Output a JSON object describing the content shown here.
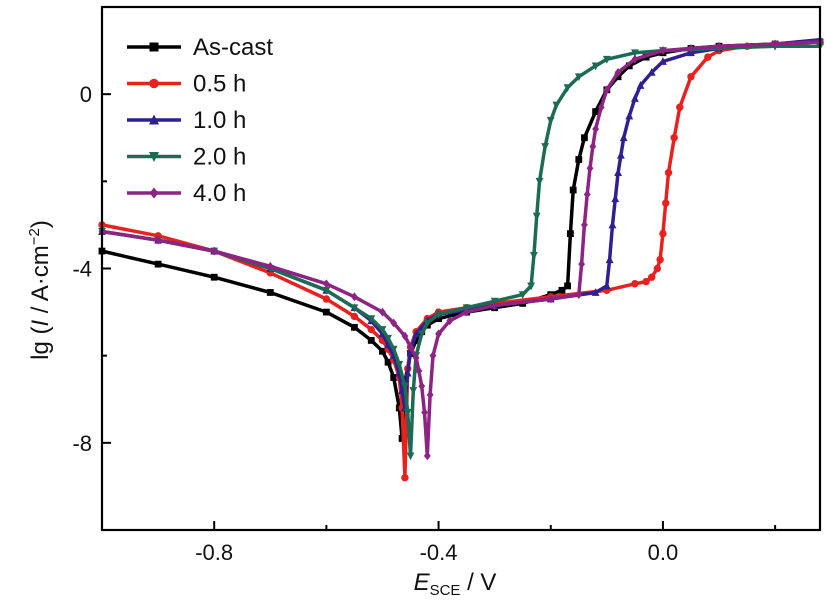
{
  "chart_data": {
    "type": "line",
    "xlabel": {
      "main": "E",
      "sub": "SCE",
      "unit": " / V"
    },
    "ylabel": {
      "prefix": "lg (",
      "italic": "I",
      "mid": " / A·cm",
      "sup": "−2",
      "suffix": ")"
    },
    "xlim": [
      -1.0,
      0.28
    ],
    "ylim": [
      -10.0,
      2.0
    ],
    "x_ticks": [
      -0.8,
      -0.4,
      0.0
    ],
    "x_tick_labels": [
      "-0.8",
      "-0.4",
      "0.0"
    ],
    "y_ticks": [
      0,
      -4,
      -8
    ],
    "y_tick_labels": [
      "0",
      "-4",
      "-8"
    ],
    "grid": false,
    "legend_position": "top-left",
    "series": [
      {
        "name": "As-cast",
        "color": "#000000",
        "marker": "square",
        "x": [
          -1.0,
          -0.9,
          -0.8,
          -0.7,
          -0.6,
          -0.55,
          -0.52,
          -0.5,
          -0.49,
          -0.48,
          -0.47,
          -0.465,
          -0.46,
          -0.45,
          -0.44,
          -0.43,
          -0.42,
          -0.4,
          -0.35,
          -0.3,
          -0.25,
          -0.2,
          -0.18,
          -0.17,
          -0.165,
          -0.16,
          -0.15,
          -0.14,
          -0.12,
          -0.1,
          -0.08,
          -0.06,
          -0.03,
          0.0,
          0.05,
          0.1,
          0.2,
          0.28
        ],
        "y": [
          -3.6,
          -3.9,
          -4.2,
          -4.55,
          -5.0,
          -5.35,
          -5.65,
          -5.9,
          -6.15,
          -6.5,
          -7.2,
          -7.9,
          -6.6,
          -5.95,
          -5.65,
          -5.45,
          -5.3,
          -5.15,
          -5.0,
          -4.9,
          -4.8,
          -4.6,
          -4.5,
          -4.4,
          -3.2,
          -2.2,
          -1.5,
          -1.0,
          -0.4,
          0.1,
          0.4,
          0.65,
          0.85,
          0.95,
          1.05,
          1.1,
          1.15,
          1.2
        ]
      },
      {
        "name": "0.5 h",
        "color": "#e8211f",
        "marker": "circle",
        "x": [
          -1.0,
          -0.9,
          -0.8,
          -0.7,
          -0.6,
          -0.55,
          -0.52,
          -0.5,
          -0.49,
          -0.48,
          -0.47,
          -0.465,
          -0.46,
          -0.455,
          -0.45,
          -0.44,
          -0.42,
          -0.4,
          -0.35,
          -0.3,
          -0.2,
          -0.1,
          -0.05,
          -0.03,
          -0.02,
          -0.01,
          -0.005,
          0.0,
          0.005,
          0.01,
          0.02,
          0.03,
          0.05,
          0.08,
          0.1,
          0.15,
          0.2,
          0.28
        ],
        "y": [
          -3.0,
          -3.25,
          -3.6,
          -4.1,
          -4.7,
          -5.1,
          -5.4,
          -5.65,
          -5.85,
          -6.1,
          -6.5,
          -7.2,
          -8.8,
          -6.3,
          -5.8,
          -5.45,
          -5.15,
          -5.0,
          -4.9,
          -4.8,
          -4.65,
          -4.5,
          -4.35,
          -4.3,
          -4.2,
          -4.0,
          -3.8,
          -3.2,
          -2.5,
          -1.8,
          -1.0,
          -0.3,
          0.4,
          0.85,
          1.0,
          1.1,
          1.15,
          1.2
        ]
      },
      {
        "name": "1.0 h",
        "color": "#2e2092",
        "marker": "triangle-up",
        "x": [
          -1.0,
          -0.9,
          -0.8,
          -0.7,
          -0.6,
          -0.55,
          -0.52,
          -0.5,
          -0.49,
          -0.48,
          -0.47,
          -0.465,
          -0.46,
          -0.455,
          -0.45,
          -0.44,
          -0.42,
          -0.4,
          -0.35,
          -0.3,
          -0.2,
          -0.12,
          -0.1,
          -0.095,
          -0.09,
          -0.085,
          -0.08,
          -0.075,
          -0.07,
          -0.06,
          -0.05,
          -0.04,
          -0.02,
          0.0,
          0.05,
          0.1,
          0.2,
          0.28
        ],
        "y": [
          -3.15,
          -3.35,
          -3.6,
          -4.0,
          -4.5,
          -4.9,
          -5.2,
          -5.5,
          -5.75,
          -6.0,
          -6.4,
          -6.8,
          -7.2,
          -6.4,
          -5.9,
          -5.5,
          -5.2,
          -5.05,
          -4.95,
          -4.85,
          -4.7,
          -4.55,
          -4.4,
          -3.8,
          -3.0,
          -2.4,
          -1.8,
          -1.4,
          -1.0,
          -0.5,
          -0.1,
          0.2,
          0.5,
          0.75,
          0.95,
          1.05,
          1.15,
          1.25
        ]
      },
      {
        "name": "2.0 h",
        "color": "#1c6b54",
        "marker": "triangle-down",
        "x": [
          -1.0,
          -0.9,
          -0.8,
          -0.7,
          -0.6,
          -0.55,
          -0.52,
          -0.5,
          -0.49,
          -0.48,
          -0.47,
          -0.46,
          -0.455,
          -0.45,
          -0.445,
          -0.44,
          -0.43,
          -0.42,
          -0.4,
          -0.35,
          -0.3,
          -0.25,
          -0.235,
          -0.23,
          -0.225,
          -0.22,
          -0.21,
          -0.2,
          -0.19,
          -0.17,
          -0.15,
          -0.12,
          -0.1,
          -0.05,
          0.0,
          0.1,
          0.2,
          0.28
        ],
        "y": [
          -3.15,
          -3.35,
          -3.6,
          -4.0,
          -4.5,
          -4.9,
          -5.15,
          -5.4,
          -5.6,
          -5.85,
          -6.2,
          -6.7,
          -7.3,
          -8.3,
          -6.8,
          -6.0,
          -5.5,
          -5.25,
          -5.05,
          -4.9,
          -4.75,
          -4.6,
          -4.4,
          -3.7,
          -2.8,
          -2.0,
          -1.2,
          -0.6,
          -0.25,
          0.15,
          0.4,
          0.65,
          0.8,
          0.95,
          1.0,
          1.05,
          1.1,
          1.1
        ]
      },
      {
        "name": "4.0 h",
        "color": "#8d2383",
        "marker": "diamond",
        "x": [
          -1.0,
          -0.9,
          -0.8,
          -0.7,
          -0.6,
          -0.55,
          -0.5,
          -0.48,
          -0.46,
          -0.45,
          -0.44,
          -0.435,
          -0.43,
          -0.425,
          -0.42,
          -0.415,
          -0.41,
          -0.4,
          -0.38,
          -0.35,
          -0.3,
          -0.2,
          -0.15,
          -0.145,
          -0.14,
          -0.135,
          -0.13,
          -0.125,
          -0.12,
          -0.11,
          -0.1,
          -0.08,
          -0.05,
          0.0,
          0.05,
          0.1,
          0.2,
          0.28
        ],
        "y": [
          -3.15,
          -3.35,
          -3.6,
          -3.95,
          -4.35,
          -4.65,
          -5.0,
          -5.25,
          -5.55,
          -5.8,
          -6.05,
          -6.35,
          -6.7,
          -7.3,
          -8.3,
          -6.9,
          -6.0,
          -5.5,
          -5.2,
          -5.0,
          -4.85,
          -4.7,
          -4.6,
          -3.9,
          -3.0,
          -2.3,
          -1.7,
          -1.2,
          -0.8,
          -0.3,
          0.1,
          0.5,
          0.8,
          1.0,
          1.05,
          1.1,
          1.15,
          1.2
        ]
      }
    ]
  }
}
